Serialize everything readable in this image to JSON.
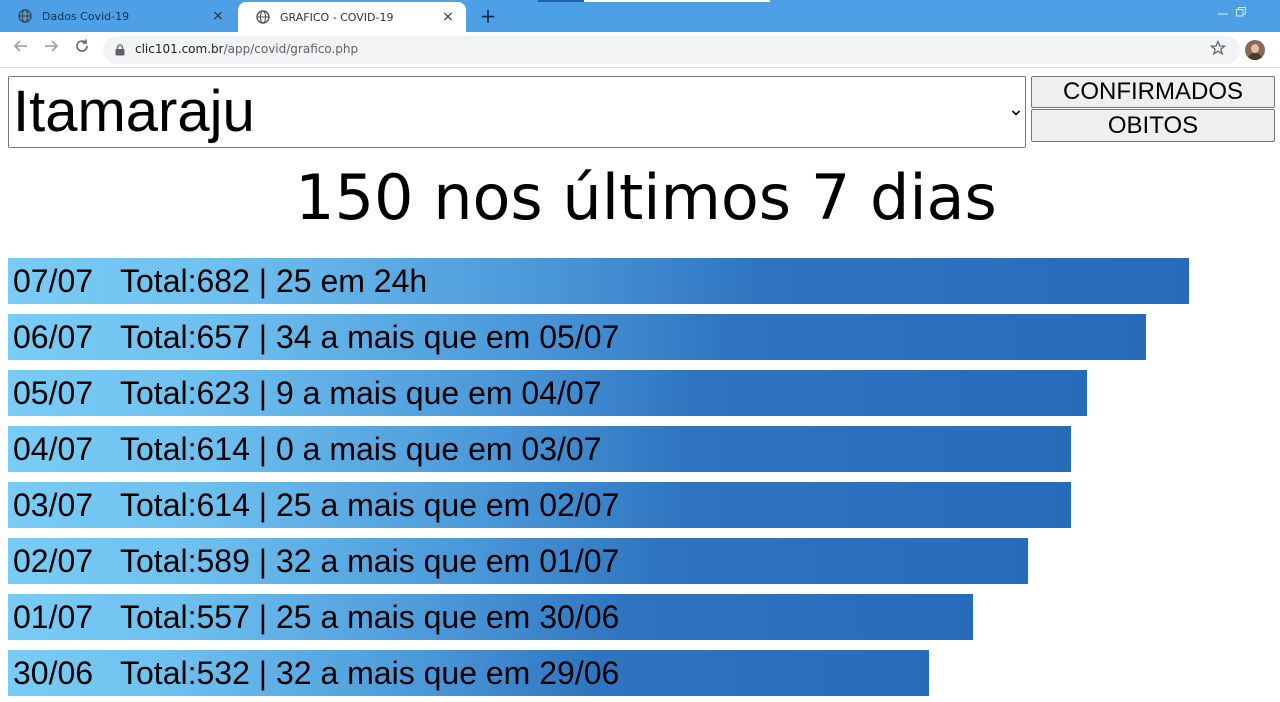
{
  "browser": {
    "tabs": [
      {
        "title": "Dados Covid-19",
        "active": false
      },
      {
        "title": "GRAFICO - COVID-19",
        "active": true
      }
    ],
    "new_tab": "+",
    "close_glyph": "×",
    "url_host": "clic101.com.br",
    "url_path": "/app/covid/grafico.php",
    "icons": {
      "back": "arrow-left-icon",
      "forward": "arrow-right-icon",
      "reload": "reload-icon",
      "lock": "lock-icon",
      "star": "star-icon",
      "minimize": "minimize-icon",
      "restore": "restore-icon"
    },
    "colors": {
      "tabstrip": "#4ea0e6"
    }
  },
  "page": {
    "city": "Itamaraju",
    "buttons": {
      "confirmed": "CONFIRMADOS",
      "deaths": "OBITOS"
    },
    "headline": "150 nos últimos 7 dias",
    "colors": {
      "bar_light": "#79ccf4",
      "bar_dark": "#276cbb"
    }
  },
  "chart_data": {
    "type": "bar",
    "orientation": "horizontal",
    "categories": [
      "07/07",
      "06/07",
      "05/07",
      "04/07",
      "03/07",
      "02/07",
      "01/07",
      "30/06"
    ],
    "values": [
      682,
      657,
      623,
      614,
      614,
      589,
      557,
      532
    ],
    "labels": [
      "Total:682 | 25 em 24h",
      "Total:657 | 34 a mais que em 05/07",
      "Total:623 | 9 a mais que em 04/07",
      "Total:614 | 0 a mais que em 03/07",
      "Total:614 | 25 a mais que em 02/07",
      "Total:589 | 32 a mais que em 01/07",
      "Total:557 | 25 a mais que em 30/06",
      "Total:532 | 32 a mais que em 29/06"
    ]
  }
}
